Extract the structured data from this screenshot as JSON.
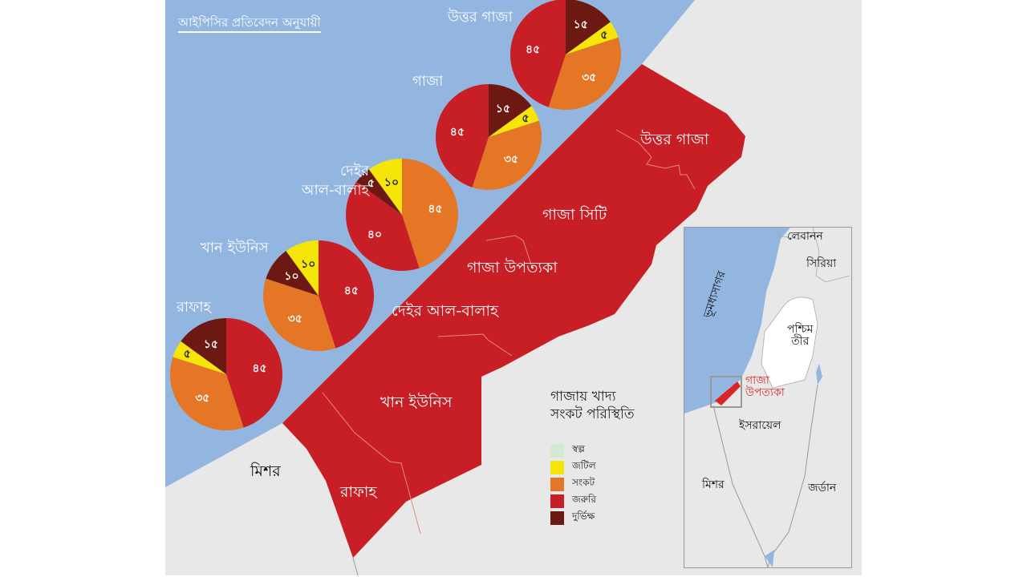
{
  "header": {
    "source_note": "আইপিসির প্রতিবেদন অনুযায়ী"
  },
  "colors": {
    "sea": "#93b6e0",
    "land": "#e8e8e8",
    "gaza_fill": "#c81e25",
    "minimal": "#d2ead4",
    "stressed": "#f5e508",
    "crisis": "#e47625",
    "emergency": "#c81e25",
    "famine": "#6b1912"
  },
  "legend": {
    "title_line1": "গাজায় খাদ্য",
    "title_line2": "সংকট পরিস্থিতি",
    "items": [
      {
        "key": "minimal",
        "label": "স্বল্প",
        "color": "#d2ead4"
      },
      {
        "key": "stressed",
        "label": "জটিল",
        "color": "#f5e508"
      },
      {
        "key": "crisis",
        "label": "সংকট",
        "color": "#e47625"
      },
      {
        "key": "emergency",
        "label": "জরুরি",
        "color": "#c81e25"
      },
      {
        "key": "famine",
        "label": "দুর্ভিক্ষ",
        "color": "#6b1912"
      }
    ]
  },
  "map_labels": {
    "north_gaza": "উত্তর গাজা",
    "gaza_city": "গাজা সিটি",
    "gaza_strip": "গাজা উপত্যকা",
    "deir_al_balah": "দেইর আল-বালাহ",
    "khan_younis": "খান ইউনিস",
    "rafah": "রাফাহ",
    "egypt": "মিশর"
  },
  "inset": {
    "lebanon": "লেবানন",
    "syria": "সিরিয়া",
    "mediterranean": "ভূমধ্যসাগর",
    "west_bank_line1": "পশ্চিম",
    "west_bank_line2": "তীর",
    "gaza_line1": "গাজা",
    "gaza_line2": "উপত্যকা",
    "israel": "ইসরায়েল",
    "egypt": "মিশর",
    "jordan": "জর্ডান"
  },
  "chart_data": {
    "type": "pie",
    "title": "গাজায় খাদ্য সংকট পরিস্থিতি",
    "subtitle": "আইপিসির প্রতিবেদন অনুযায়ী",
    "unit": "%",
    "legend": [
      "স্বল্প",
      "জটিল",
      "সংকট",
      "জরুরি",
      "দুর্ভিক্ষ"
    ],
    "pies": [
      {
        "name": "উত্তর গাজা",
        "name_line2": "",
        "slices": [
          {
            "category": "দুর্ভিক্ষ",
            "value": 15,
            "label": "১৫"
          },
          {
            "category": "জটিল",
            "value": 5,
            "label": "৫"
          },
          {
            "category": "সংকট",
            "value": 35,
            "label": "৩৫"
          },
          {
            "category": "জরুরি",
            "value": 45,
            "label": "৪৫"
          }
        ]
      },
      {
        "name": "গাজা",
        "name_line2": "",
        "slices": [
          {
            "category": "দুর্ভিক্ষ",
            "value": 15,
            "label": "১৫"
          },
          {
            "category": "জটিল",
            "value": 5,
            "label": "৫"
          },
          {
            "category": "সংকট",
            "value": 35,
            "label": "৩৫"
          },
          {
            "category": "জরুরি",
            "value": 45,
            "label": "৪৫"
          }
        ]
      },
      {
        "name": "দেইর",
        "name_line2": "আল-বালাহ",
        "slices": [
          {
            "category": "সংকট",
            "value": 45,
            "label": "৪৫"
          },
          {
            "category": "জরুরি",
            "value": 40,
            "label": "৪০"
          },
          {
            "category": "দুর্ভিক্ষ",
            "value": 5,
            "label": "৫"
          },
          {
            "category": "জটিল",
            "value": 10,
            "label": "১০"
          }
        ]
      },
      {
        "name": "খান ইউনিস",
        "name_line2": "",
        "slices": [
          {
            "category": "জরুরি",
            "value": 45,
            "label": "৪৫"
          },
          {
            "category": "সংকট",
            "value": 35,
            "label": "৩৫"
          },
          {
            "category": "দুর্ভিক্ষ",
            "value": 10,
            "label": "১০"
          },
          {
            "category": "জটিল",
            "value": 10,
            "label": "১০"
          }
        ]
      },
      {
        "name": "রাফাহ",
        "name_line2": "",
        "slices": [
          {
            "category": "জরুরি",
            "value": 45,
            "label": "৪৫"
          },
          {
            "category": "সংকট",
            "value": 35,
            "label": "৩৫"
          },
          {
            "category": "জটিল",
            "value": 5,
            "label": "৫"
          },
          {
            "category": "দুর্ভিক্ষ",
            "value": 15,
            "label": "১৫"
          }
        ]
      }
    ]
  }
}
